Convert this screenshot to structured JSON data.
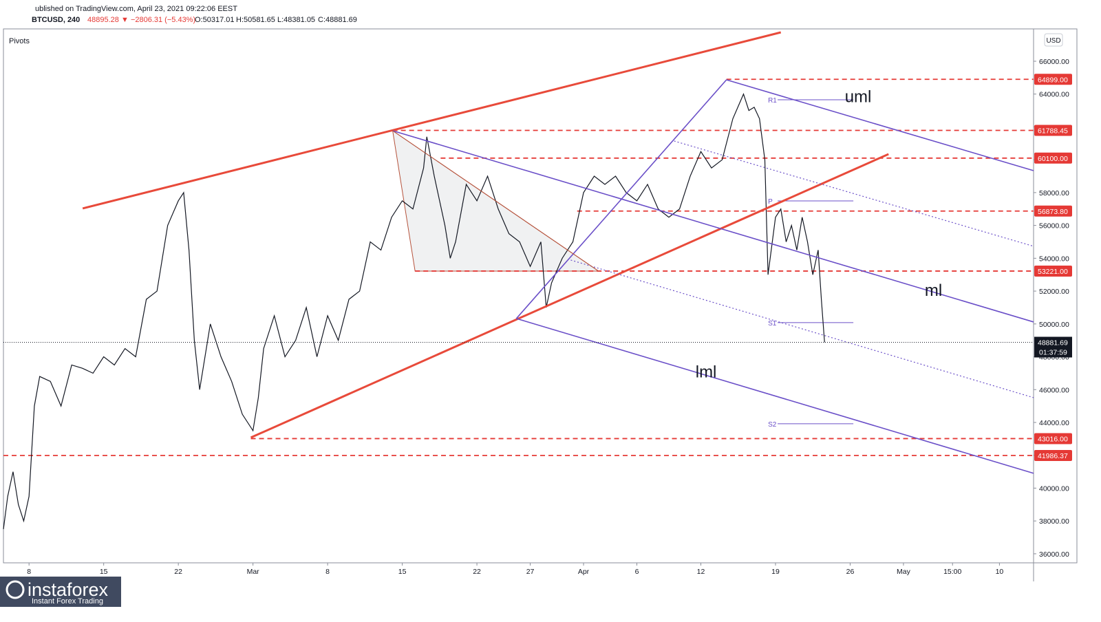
{
  "chart_data": {
    "type": "line",
    "header": "ublished on TradingView.com, April 23, 2021 09:22:06 EEST",
    "symbol": "BTCUSD, 240",
    "last": "48895.28",
    "change": "▼ −2806.31 (−5.43%)",
    "open": "O:50317.01",
    "high": "H:50581.65",
    "low": "L:48381.05",
    "close": "C:48881.69",
    "indicator": "Pivots",
    "currency": "USD",
    "x": [
      4.6,
      5,
      5.5,
      6,
      6.5,
      7,
      7.5,
      8,
      9,
      10,
      11,
      12,
      13,
      14,
      15,
      16,
      17,
      18,
      19,
      20,
      21,
      21.5,
      22,
      22.5,
      23,
      24,
      25,
      26,
      27,
      28,
      28.5,
      29,
      30,
      31,
      32,
      33,
      34,
      35,
      36,
      37,
      38,
      39,
      40,
      41,
      42,
      43,
      44,
      44.3,
      45,
      46,
      46.5,
      47,
      48,
      49,
      50,
      51,
      52,
      53,
      54,
      55,
      55.5,
      56,
      57,
      58,
      59,
      60,
      61,
      62,
      63,
      64,
      65,
      66,
      67,
      68,
      69,
      70,
      71,
      72,
      73,
      74,
      74.5,
      75,
      75.5,
      76,
      76.3,
      77,
      77.5,
      78,
      78.5,
      79,
      79.5,
      80,
      80.5,
      81,
      81.3,
      81.6
    ],
    "series": [
      {
        "name": "BTCUSD",
        "color": "#131722",
        "values": [
          37500,
          39500,
          41000,
          39000,
          38000,
          39500,
          45000,
          46800,
          46500,
          45000,
          47500,
          47300,
          47000,
          48000,
          47500,
          48500,
          48000,
          51500,
          52000,
          56000,
          57500,
          58000,
          54500,
          49000,
          46000,
          50000,
          48000,
          46500,
          44500,
          43500,
          45500,
          48500,
          50500,
          48000,
          49000,
          51000,
          48000,
          50500,
          49000,
          51500,
          52000,
          55000,
          54500,
          56500,
          57500,
          57000,
          59500,
          61400,
          59000,
          56000,
          54000,
          55000,
          58500,
          57500,
          59000,
          57000,
          55500,
          55000,
          53500,
          55000,
          51000,
          52500,
          54000,
          55000,
          58000,
          59000,
          58500,
          59000,
          58000,
          57500,
          58500,
          57000,
          56500,
          57000,
          59000,
          60500,
          59500,
          60000,
          62500,
          64000,
          63000,
          63200,
          62500,
          60000,
          53000,
          56500,
          57000,
          55000,
          56000,
          54500,
          56500,
          55000,
          53000,
          54500,
          51500,
          48881.69
        ]
      }
    ],
    "xlim": [
      4.6,
      101.2
    ],
    "ylim": [
      35450,
      67970
    ],
    "xticks": [
      {
        "value": 7,
        "label": "8"
      },
      {
        "value": 14,
        "label": "15"
      },
      {
        "value": 21,
        "label": "22"
      },
      {
        "value": 28,
        "label": "Mar"
      },
      {
        "value": 35,
        "label": "8"
      },
      {
        "value": 42,
        "label": "15"
      },
      {
        "value": 49,
        "label": "22"
      },
      {
        "value": 54,
        "label": "27"
      },
      {
        "value": 59,
        "label": "Apr"
      },
      {
        "value": 64,
        "label": "6"
      },
      {
        "value": 70,
        "label": "12"
      },
      {
        "value": 77,
        "label": "19"
      },
      {
        "value": 84,
        "label": "26"
      },
      {
        "value": 89,
        "label": "May"
      },
      {
        "value": 93.6,
        "label": "15:00"
      },
      {
        "value": 98,
        "label": "10"
      }
    ],
    "yticks": [
      {
        "value": 36000,
        "label": "36000.00"
      },
      {
        "value": 38000,
        "label": "38000.00"
      },
      {
        "value": 40000,
        "label": "40000.00"
      },
      {
        "value": 42000,
        "label": "42000.00"
      },
      {
        "value": 44000,
        "label": "44000.00"
      },
      {
        "value": 46000,
        "label": "46000.00"
      },
      {
        "value": 48000,
        "label": "48000.00"
      },
      {
        "value": 50000,
        "label": "50000.00"
      },
      {
        "value": 52000,
        "label": "52000.00"
      },
      {
        "value": 54000,
        "label": "54000.00"
      },
      {
        "value": 56000,
        "label": "56000.00"
      },
      {
        "value": 58000,
        "label": "58000.00"
      },
      {
        "value": 60000,
        "label": "60000.00"
      },
      {
        "value": 62000,
        "label": "62000.00"
      },
      {
        "value": 64000,
        "label": "64000.00"
      },
      {
        "value": 66000,
        "label": "66000.00"
      }
    ],
    "levels": [
      {
        "from": 72.4,
        "value": 64899,
        "label": "64899.00"
      },
      {
        "from": 41.1,
        "value": 61788.45,
        "label": "61788.45"
      },
      {
        "from": 45.6,
        "value": 60100,
        "label": "60100.00"
      },
      {
        "from": 58.4,
        "value": 56873.8,
        "label": "56873.80"
      },
      {
        "from": 43.2,
        "value": 53221,
        "label": "53221.00"
      },
      {
        "from": 27.8,
        "value": 43016,
        "label": "43016.00"
      },
      {
        "from": 4.6,
        "value": 41986.37,
        "label": "41986.37"
      }
    ],
    "level_color": "#e53935",
    "current": {
      "value": 48881.69,
      "label": "48881.69",
      "countdown": "01:37:59"
    },
    "lines": [
      {
        "x": [
          12.03,
          77.5
        ],
        "y": [
          57034,
          67760
        ],
        "color": "#e84a3a",
        "width": 3
      },
      {
        "x": [
          27.8,
          87.6
        ],
        "y": [
          43081,
          60344
        ],
        "color": "#e84a3a",
        "width": 3
      },
      {
        "x": [
          52.7,
          72.4
        ],
        "y": [
          50330,
          64869
        ],
        "color": "#6a4fc8",
        "width": 1.6
      },
      {
        "x": [
          41.1,
          101.2
        ],
        "y": [
          61768,
          50120
        ],
        "color": "#6a4fc8",
        "width": 1.6
      },
      {
        "x": [
          72.4,
          101.2
        ],
        "y": [
          64869,
          59338
        ],
        "color": "#6a4fc8",
        "width": 1.6
      },
      {
        "x": [
          52.7,
          101.2
        ],
        "y": [
          50330,
          40903
        ],
        "color": "#6a4fc8",
        "width": 1.6
      },
      {
        "x": [
          67.5,
          101.2
        ],
        "y": [
          61140,
          54730
        ],
        "color": "#6a4fc8",
        "width": 1.2,
        "dotted": true
      },
      {
        "x": [
          57.8,
          101.2
        ],
        "y": [
          53891,
          45511
        ],
        "color": "#6a4fc8",
        "width": 1.2,
        "dotted": true
      },
      {
        "x": [
          41.1,
          60.4
        ],
        "y": [
          61768,
          53221
        ],
        "color": "#b5523b",
        "width": 1
      }
    ],
    "triangle": {
      "x": [
        41.1,
        43.2,
        60.4
      ],
      "y": [
        61768,
        53221,
        53221
      ]
    },
    "pivots": [
      {
        "name": "R1",
        "value": 63654
      },
      {
        "name": "P",
        "value": 57495
      },
      {
        "name": "S1",
        "value": 50079
      },
      {
        "name": "S2",
        "value": 43920
      }
    ],
    "pivot_range": [
      77.2,
      84.3
    ],
    "annotations": [
      {
        "text": "uml",
        "x": 83.5,
        "y": 63500
      },
      {
        "text": "ml",
        "x": 91,
        "y": 51700
      },
      {
        "text": "lml",
        "x": 69.5,
        "y": 46750
      }
    ],
    "logo": "instaforex",
    "logo_sub": "Instant Forex Trading"
  }
}
